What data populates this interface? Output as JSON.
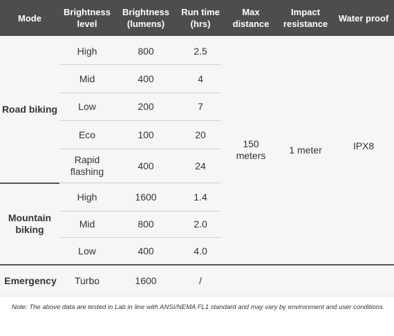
{
  "header": {
    "mode": "Mode",
    "brightness_level": "Brightness level",
    "brightness_lumens": "Brightness (lumens)",
    "run_time": "Run time (hrs)",
    "max_distance": "Max distance",
    "impact_resistance": "Impact resistance",
    "water_proof": "Water proof"
  },
  "groups": [
    {
      "mode": "Road biking",
      "rows": [
        {
          "level": "High",
          "lumens": "800",
          "runtime": "2.5"
        },
        {
          "level": "Mid",
          "lumens": "400",
          "runtime": "4"
        },
        {
          "level": "Low",
          "lumens": "200",
          "runtime": "7"
        },
        {
          "level": "Eco",
          "lumens": "100",
          "runtime": "20"
        },
        {
          "level": "Rapid flashing",
          "lumens": "400",
          "runtime": "24"
        }
      ]
    },
    {
      "mode": "Mountain biking",
      "rows": [
        {
          "level": "High",
          "lumens": "1600",
          "runtime": "1.4"
        },
        {
          "level": "Mid",
          "lumens": "800",
          "runtime": "2.0"
        },
        {
          "level": "Low",
          "lumens": "400",
          "runtime": "4.0"
        }
      ]
    },
    {
      "mode": "Emergency",
      "rows": [
        {
          "level": "Turbo",
          "lumens": "1600",
          "runtime": "/"
        }
      ]
    }
  ],
  "shared": {
    "max_distance": "150 meters",
    "impact_resistance": "1 meter",
    "water_proof": "IPX8"
  },
  "note": "Note: The above data are tested in Lab in line with ANSI/NEMA FL1 standard and may vary by environment and user conditions."
}
